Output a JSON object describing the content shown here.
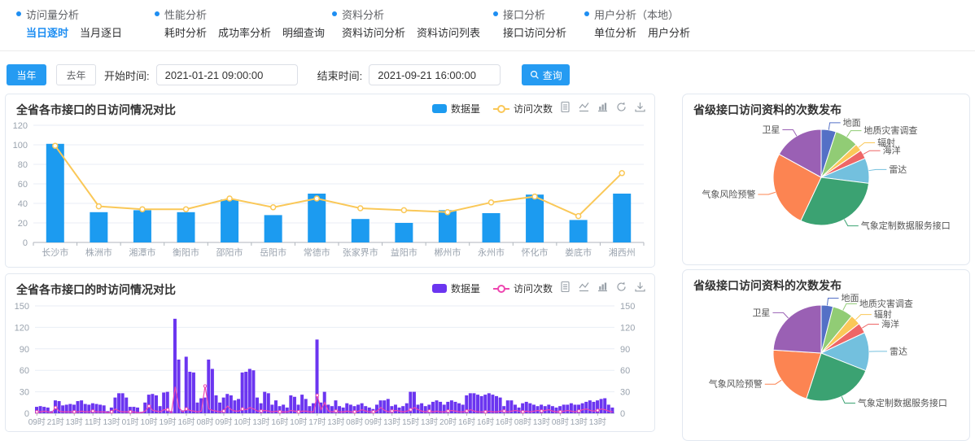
{
  "nav": {
    "groups": [
      {
        "title": "访问量分析",
        "items": [
          {
            "label": "当日逐时",
            "active": true
          },
          {
            "label": "当月逐日",
            "active": false
          }
        ]
      },
      {
        "title": "性能分析",
        "items": [
          {
            "label": "耗时分析",
            "active": false
          },
          {
            "label": "成功率分析",
            "active": false
          },
          {
            "label": "明细查询",
            "active": false
          }
        ]
      },
      {
        "title": "资料分析",
        "items": [
          {
            "label": "资料访问分析",
            "active": false
          },
          {
            "label": "资料访问列表",
            "active": false
          }
        ]
      },
      {
        "title": "接口分析",
        "items": [
          {
            "label": "接口访问分析",
            "active": false
          }
        ]
      },
      {
        "title": "用户分析（本地）",
        "items": [
          {
            "label": "单位分析",
            "active": false
          },
          {
            "label": "用户分析",
            "active": false
          }
        ]
      }
    ]
  },
  "filters": {
    "this_year_label": "当年",
    "last_year_label": "去年",
    "start_label": "开始时间:",
    "start_value": "2021-01-21 09:00:00",
    "end_label": "结束时间:",
    "end_value": "2021-09-21 16:00:00",
    "search_label": "查询"
  },
  "toolbox_icons": [
    "data-view",
    "switch-to-line-chart",
    "switch-to-bar-chart",
    "restore",
    "save-as-image"
  ],
  "colors": {
    "accent": "#259bf2",
    "nav_active": "#1e8ef2",
    "grid": "#e9eef5",
    "axis_label": "#9aa3ae",
    "axis_line": "#b0b6bd"
  },
  "chart_data": [
    {
      "type": "bar",
      "title": "全省各市接口的日访问情况对比",
      "categories": [
        "长沙市",
        "株洲市",
        "湘潭市",
        "衡阳市",
        "邵阳市",
        "岳阳市",
        "常德市",
        "张家界市",
        "益阳市",
        "郴州市",
        "永州市",
        "怀化市",
        "娄底市",
        "湘西州"
      ],
      "series": [
        {
          "name": "数据量",
          "type": "bar",
          "color": "#1c9bf0",
          "values": [
            101,
            31,
            33,
            31,
            44,
            28,
            50,
            24,
            20,
            33,
            30,
            49,
            23,
            50
          ]
        },
        {
          "name": "访问次数",
          "type": "line",
          "color": "#fac858",
          "values": [
            99,
            37,
            34,
            34,
            45,
            36,
            45,
            35,
            33,
            31,
            41,
            47,
            27,
            71
          ]
        }
      ],
      "ylim": [
        0,
        120
      ],
      "ystep": 20,
      "grid": true,
      "legend_position": "top"
    },
    {
      "type": "bar",
      "title": "全省各市接口的时访问情况对比",
      "x_tick_labels": [
        "09时",
        "21时",
        "13时",
        "11时",
        "13时",
        "01时",
        "10时",
        "19时",
        "16时",
        "08时",
        "09时",
        "10时",
        "13时",
        "16时",
        "10时",
        "17时",
        "13时",
        "08时",
        "09时",
        "13时",
        "15时",
        "13时",
        "20时",
        "16时",
        "16时",
        "16时",
        "08时",
        "13时",
        "08时",
        "13时",
        "13时"
      ],
      "label_every_n_bars": 5,
      "series": [
        {
          "name": "数据量",
          "type": "bar",
          "color": "#6b35f0",
          "values": [
            9,
            10,
            9,
            8,
            3,
            18,
            17,
            11,
            12,
            13,
            12,
            17,
            18,
            13,
            12,
            14,
            13,
            12,
            11,
            3,
            8,
            22,
            28,
            28,
            22,
            9,
            9,
            8,
            2,
            15,
            26,
            27,
            25,
            10,
            29,
            30,
            3,
            132,
            75,
            4,
            79,
            58,
            57,
            15,
            21,
            22,
            75,
            62,
            25,
            15,
            22,
            27,
            25,
            18,
            20,
            57,
            58,
            62,
            60,
            22,
            14,
            30,
            28,
            12,
            18,
            10,
            12,
            8,
            25,
            23,
            12,
            26,
            20,
            10,
            14,
            103,
            15,
            30,
            12,
            10,
            18,
            10,
            8,
            14,
            12,
            10,
            12,
            14,
            10,
            8,
            6,
            12,
            18,
            18,
            20,
            10,
            12,
            8,
            10,
            14,
            30,
            30,
            12,
            14,
            10,
            12,
            16,
            18,
            16,
            12,
            16,
            18,
            16,
            14,
            12,
            25,
            28,
            28,
            26,
            24,
            26,
            28,
            26,
            24,
            22,
            10,
            18,
            18,
            12,
            8,
            14,
            16,
            14,
            12,
            10,
            12,
            10,
            12,
            10,
            8,
            10,
            12,
            12,
            14,
            12,
            12,
            14,
            16,
            18,
            16,
            18,
            20,
            21,
            12,
            8
          ]
        },
        {
          "name": "访问次数",
          "type": "line",
          "color": "#ee46b0",
          "values": [
            2,
            2,
            3,
            2,
            1,
            8,
            3,
            2,
            2,
            2,
            2,
            2,
            3,
            2,
            2,
            3,
            2,
            2,
            2,
            1,
            2,
            6,
            3,
            2,
            2,
            2,
            2,
            1,
            1,
            3,
            10,
            4,
            3,
            2,
            5,
            5,
            1,
            37,
            8,
            2,
            6,
            4,
            3,
            2,
            3,
            38,
            6,
            4,
            3,
            2,
            3,
            10,
            5,
            3,
            3,
            6,
            5,
            8,
            6,
            3,
            3,
            4,
            3,
            2,
            3,
            2,
            2,
            2,
            4,
            3,
            2,
            3,
            3,
            2,
            2,
            25,
            5,
            15,
            3,
            2,
            3,
            2,
            2,
            3,
            2,
            2,
            3,
            5,
            3,
            2,
            2,
            3,
            8,
            4,
            2,
            3,
            4,
            3,
            2,
            3,
            5,
            8,
            5,
            3,
            2,
            3,
            2,
            3,
            2,
            2,
            3,
            4,
            3,
            2,
            2,
            3,
            5,
            3,
            2,
            2,
            2,
            3,
            2,
            2,
            3,
            3,
            2,
            3,
            4,
            3,
            2,
            3,
            2,
            3,
            4,
            3,
            4,
            5,
            3,
            2,
            2,
            3,
            4,
            3,
            2,
            3,
            5,
            6,
            4,
            3,
            4,
            6,
            5,
            3,
            2
          ]
        }
      ],
      "ylim": [
        0,
        150
      ],
      "ystep": 30,
      "dual_y_axis": true,
      "grid": true,
      "legend_position": "top"
    },
    {
      "type": "pie",
      "title": "省级接口访问资料的次数发布",
      "slices": [
        {
          "name": "地面",
          "value": 5,
          "color": "#5470c6"
        },
        {
          "name": "地质灾害调查",
          "value": 8,
          "color": "#91cc75"
        },
        {
          "name": "辐射",
          "value": 2.5,
          "color": "#fac858"
        },
        {
          "name": "海洋",
          "value": 3,
          "color": "#ee6666"
        },
        {
          "name": "雷达",
          "value": 8.5,
          "color": "#73c0de"
        },
        {
          "name": "气象定制数据服务接口",
          "value": 30,
          "color": "#3ba272"
        },
        {
          "name": "气象风险预警",
          "value": 26,
          "color": "#fc8452"
        },
        {
          "name": "卫星",
          "value": 17,
          "color": "#9a60b4"
        }
      ]
    },
    {
      "type": "pie",
      "title": "省级接口访问资料的次数发布",
      "slices": [
        {
          "name": "地面",
          "value": 4,
          "color": "#5470c6"
        },
        {
          "name": "地质灾害调查",
          "value": 7,
          "color": "#91cc75"
        },
        {
          "name": "辐射",
          "value": 3.5,
          "color": "#fac858"
        },
        {
          "name": "海洋",
          "value": 3.5,
          "color": "#ee6666"
        },
        {
          "name": "雷达",
          "value": 13,
          "color": "#73c0de"
        },
        {
          "name": "气象定制数据服务接口",
          "value": 24,
          "color": "#3ba272"
        },
        {
          "name": "气象风险预警",
          "value": 21,
          "color": "#fc8452"
        },
        {
          "name": "卫星",
          "value": 24,
          "color": "#9a60b4"
        }
      ]
    }
  ]
}
